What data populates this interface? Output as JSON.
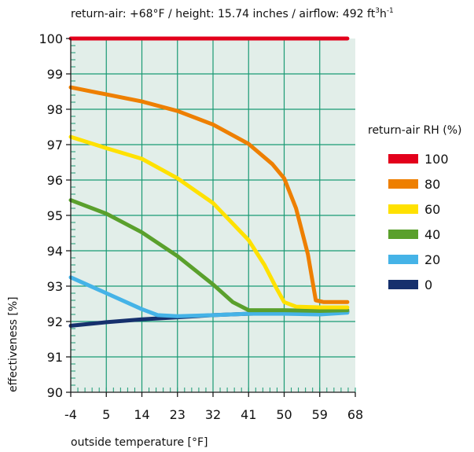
{
  "chart_data": {
    "type": "line",
    "title": "return-air: +68°F / height: 15.74 inches / airflow: 492 ft³h⁻¹",
    "title_main": "return-air: +68°F / height: 15.74 inches / airflow: 492 ft",
    "title_sup1": "3",
    "title_h": "h",
    "title_sup2": "-1",
    "xlabel": "outside temperature [°F]",
    "ylabel": "effectiveness [%]",
    "xlim": [
      -4,
      68
    ],
    "ylim": [
      90,
      100
    ],
    "x_ticks": [
      -4,
      5,
      14,
      23,
      32,
      41,
      50,
      59,
      68
    ],
    "x_tick_labels": [
      "-4",
      "5",
      "14",
      "23",
      "32",
      "41",
      "50",
      "59",
      "68"
    ],
    "y_ticks": [
      90,
      91,
      92,
      93,
      94,
      95,
      96,
      97,
      98,
      99,
      100
    ],
    "y_tick_labels": [
      "90",
      "91",
      "92",
      "93",
      "94",
      "95",
      "96",
      "97",
      "98",
      "99",
      "100"
    ],
    "grid": true,
    "legend_title": "return-air RH (%)",
    "legend_position": "right",
    "series": [
      {
        "name": "100",
        "color": "#e3001b",
        "x": [
          -4,
          66
        ],
        "values": [
          100,
          100
        ]
      },
      {
        "name": "80",
        "color": "#ee7f00",
        "x": [
          -4,
          5,
          14,
          23,
          32,
          41,
          47,
          50,
          53,
          56,
          58,
          60,
          62,
          66
        ],
        "values": [
          98.62,
          98.42,
          98.22,
          97.95,
          97.57,
          97.02,
          96.45,
          96.05,
          95.2,
          93.9,
          92.6,
          92.55,
          92.55,
          92.55
        ]
      },
      {
        "name": "60",
        "color": "#ffe100",
        "x": [
          -4,
          5,
          14,
          23,
          32,
          41,
          45,
          48,
          50,
          53,
          59,
          66
        ],
        "values": [
          97.22,
          96.9,
          96.6,
          96.05,
          95.35,
          94.3,
          93.6,
          92.95,
          92.55,
          92.42,
          92.4,
          92.4
        ]
      },
      {
        "name": "40",
        "color": "#5aa02c",
        "x": [
          -4,
          5,
          14,
          23,
          32,
          37,
          41,
          50,
          59,
          66
        ],
        "values": [
          95.43,
          95.05,
          94.52,
          93.85,
          93.05,
          92.55,
          92.32,
          92.32,
          92.3,
          92.32
        ]
      },
      {
        "name": "20",
        "color": "#45b3e7",
        "x": [
          -4,
          5,
          14,
          18,
          23,
          32,
          41,
          50,
          59,
          66
        ],
        "values": [
          93.25,
          92.8,
          92.35,
          92.18,
          92.15,
          92.18,
          92.22,
          92.22,
          92.2,
          92.25
        ]
      },
      {
        "name": "0",
        "color": "#16306d",
        "x": [
          -4,
          5,
          14,
          23,
          32,
          41,
          50,
          59,
          66
        ],
        "values": [
          91.88,
          91.98,
          92.06,
          92.12,
          92.18,
          92.22,
          92.24,
          92.25,
          92.28
        ]
      }
    ]
  }
}
